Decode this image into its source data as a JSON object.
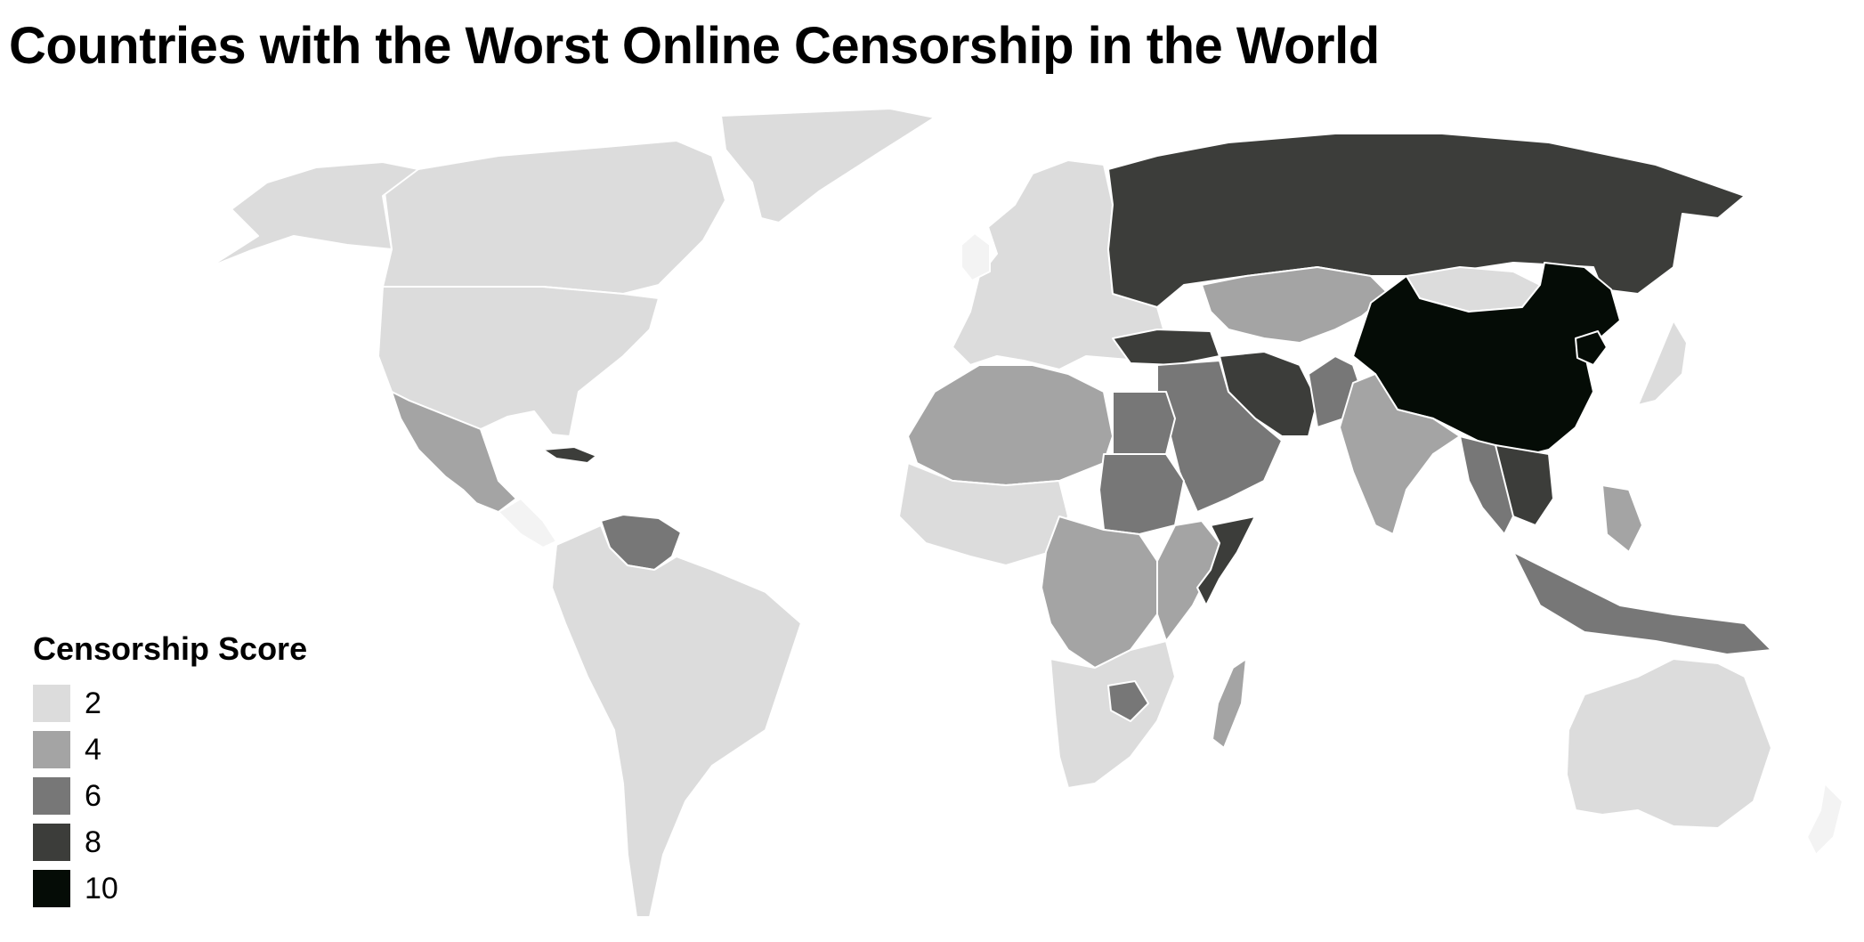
{
  "title": "Countries with the Worst Online Censorship in the World",
  "legend": {
    "title": "Censorship Score",
    "items": [
      {
        "label": "2",
        "value": 2,
        "color": "#dcdcdc"
      },
      {
        "label": "4",
        "value": 4,
        "color": "#a4a4a4"
      },
      {
        "label": "6",
        "value": 6,
        "color": "#777777"
      },
      {
        "label": "8",
        "value": 8,
        "color": "#3c3d3a"
      },
      {
        "label": "10",
        "value": 10,
        "color": "#050c06"
      }
    ]
  },
  "colors": {
    "no_data": "#f3f3f3",
    "border": "#ffffff",
    "background": "#ffffff"
  },
  "regions": [
    {
      "name": "greenland",
      "score": 2
    },
    {
      "name": "canada",
      "score": 2
    },
    {
      "name": "usa",
      "score": 2
    },
    {
      "name": "alaska",
      "score": 2
    },
    {
      "name": "mexico",
      "score": 4
    },
    {
      "name": "cuba",
      "score": 8
    },
    {
      "name": "venezuela",
      "score": 6
    },
    {
      "name": "south-america",
      "score": 2
    },
    {
      "name": "europe",
      "score": 2
    },
    {
      "name": "russia",
      "score": 8
    },
    {
      "name": "central-asia",
      "score": 4
    },
    {
      "name": "turkey",
      "score": 8
    },
    {
      "name": "iran",
      "score": 8
    },
    {
      "name": "middle-east",
      "score": 6
    },
    {
      "name": "north-africa",
      "score": 4
    },
    {
      "name": "egypt",
      "score": 6
    },
    {
      "name": "sudan",
      "score": 6
    },
    {
      "name": "west-africa",
      "score": 2
    },
    {
      "name": "central-africa",
      "score": 4
    },
    {
      "name": "east-africa",
      "score": 4
    },
    {
      "name": "somalia",
      "score": 8
    },
    {
      "name": "southern-africa",
      "score": 2
    },
    {
      "name": "zimbabwe",
      "score": 6
    },
    {
      "name": "madagascar",
      "score": 4
    },
    {
      "name": "india",
      "score": 4
    },
    {
      "name": "pakistan",
      "score": 6
    },
    {
      "name": "china",
      "score": 10
    },
    {
      "name": "north-korea",
      "score": 10
    },
    {
      "name": "mongolia",
      "score": 2
    },
    {
      "name": "japan",
      "score": 2
    },
    {
      "name": "vietnam",
      "score": 8
    },
    {
      "name": "southeast-asia",
      "score": 6
    },
    {
      "name": "indonesia",
      "score": 6
    },
    {
      "name": "philippines",
      "score": 4
    },
    {
      "name": "australia",
      "score": 2
    }
  ]
}
